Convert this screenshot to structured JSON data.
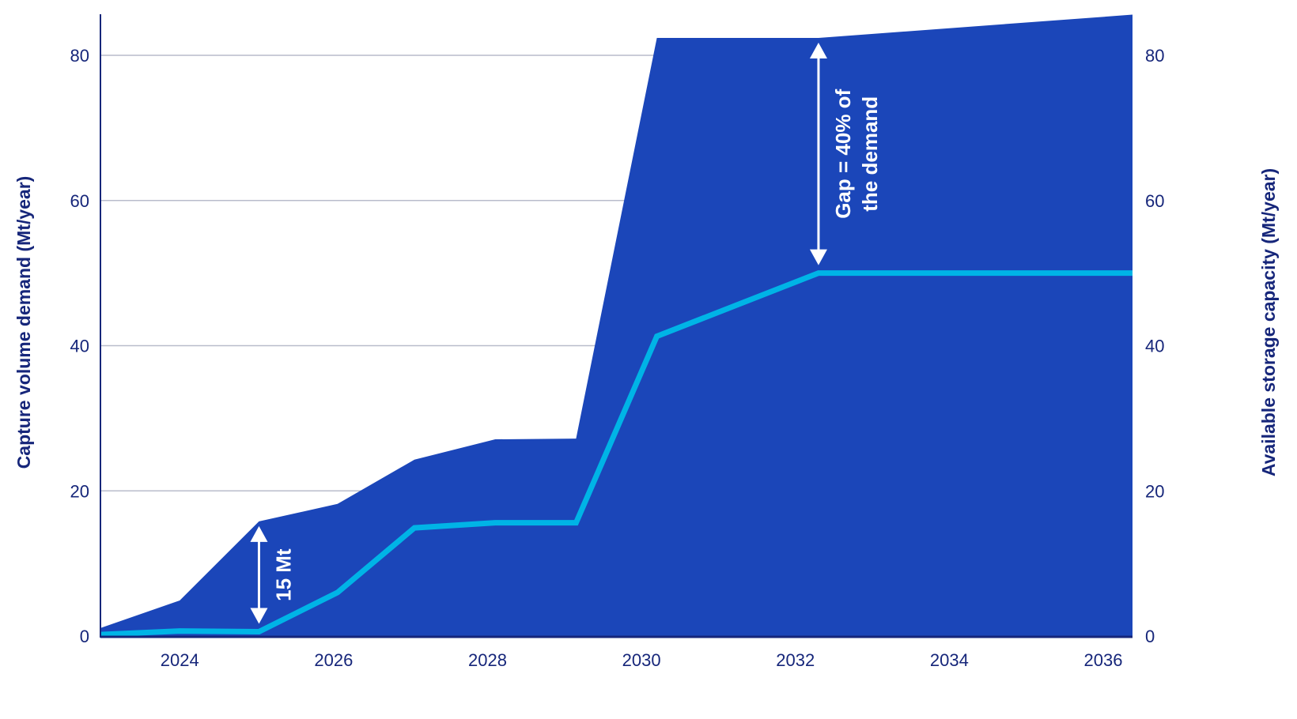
{
  "chart_data": {
    "type": "area",
    "title": "",
    "xlabel": "",
    "ylabel_left": "Capture volume demand (Mt/year)",
    "ylabel_right": "Available storage capacity (Mt/year)",
    "xlim": [
      2022.97,
      2036.38
    ],
    "ylim": [
      0,
      80
    ],
    "x_ticks": [
      "2024",
      "2026",
      "2028",
      "2030",
      "2032",
      "2034",
      "2036"
    ],
    "y_ticks": [
      "0",
      "20",
      "40",
      "60",
      "80"
    ],
    "grid": "horizontal",
    "series": [
      {
        "kind": "area",
        "color": "#1B46B9",
        "x": [
          2022.97,
          2024.0,
          2025.03,
          2026.05,
          2027.05,
          2028.1,
          2029.15,
          2030.2,
          2032.3,
          2036.38
        ],
        "y": [
          1.1,
          4.9,
          15.8,
          18.2,
          24.3,
          27.1,
          27.2,
          82.4,
          82.4,
          85.6
        ]
      },
      {
        "kind": "line",
        "color": "#00B4E6",
        "x": [
          2022.97,
          2024.0,
          2025.03,
          2026.05,
          2027.05,
          2028.1,
          2029.15,
          2030.2,
          2032.3,
          2036.38
        ],
        "y": [
          0.2,
          0.7,
          0.6,
          6.0,
          14.9,
          15.6,
          15.6,
          41.3,
          50.0,
          50.0
        ]
      }
    ],
    "annotations": [
      {
        "x": 2025.03,
        "y_from": 0.6,
        "y_to": 15.8,
        "lines": [
          "15 Mt"
        ]
      },
      {
        "x": 2032.3,
        "y_from": 50.0,
        "y_to": 82.4,
        "lines": [
          "Gap = 40% of",
          "the demand"
        ]
      }
    ]
  },
  "colors": {
    "axis_text": "#16267a",
    "grid": "#b9bccb",
    "annotation": "#ffffff"
  }
}
